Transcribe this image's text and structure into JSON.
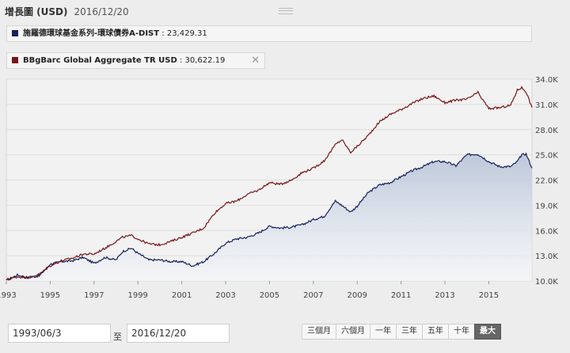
{
  "header": {
    "title": "增長圖 (USD)",
    "date": "2016/12/20"
  },
  "legend": [
    {
      "name": "施羅德環球基金系列-環球債券A-DIST",
      "value": "23,429.31",
      "color": "#16215e"
    },
    {
      "name": "BBgBarc Global Aggregate TR USD",
      "value": "30,622.19",
      "color": "#7a1616",
      "close": "✕"
    }
  ],
  "controls": {
    "start_date": "1993/06/3",
    "separator": "至",
    "end_date": "2016/12/20",
    "ranges": [
      "三個月",
      "六個月",
      "一年",
      "三年",
      "五年",
      "十年",
      "最大"
    ],
    "active_range": "最大"
  },
  "chart_data": {
    "type": "area",
    "title": "增長圖 (USD)",
    "x_ticks": [
      "1993",
      "1995",
      "1997",
      "1999",
      "2001",
      "2003",
      "2005",
      "2007",
      "2009",
      "2011",
      "2013",
      "2015"
    ],
    "x_range": [
      1993.0,
      2016.97
    ],
    "y_ticks": [
      "10.0K",
      "13.0K",
      "16.0K",
      "19.0K",
      "22.0K",
      "25.0K",
      "28.0K",
      "31.0K",
      "34.0K"
    ],
    "ylim": [
      10000,
      34000
    ],
    "series": [
      {
        "name": "施羅德環球基金系列-環球債券A-DIST",
        "color": "#16215e",
        "fill": true,
        "x": [
          1993.0,
          1993.5,
          1994.0,
          1994.5,
          1995.0,
          1995.5,
          1996.0,
          1996.5,
          1997.0,
          1997.5,
          1998.0,
          1998.3,
          1998.7,
          1999.0,
          1999.5,
          2000.0,
          2000.5,
          2001.0,
          2001.5,
          2002.0,
          2002.5,
          2003.0,
          2003.5,
          2004.0,
          2004.5,
          2005.0,
          2005.5,
          2006.0,
          2006.5,
          2007.0,
          2007.5,
          2008.0,
          2008.3,
          2008.7,
          2009.0,
          2009.5,
          2010.0,
          2010.5,
          2011.0,
          2011.5,
          2012.0,
          2012.5,
          2013.0,
          2013.5,
          2014.0,
          2014.5,
          2015.0,
          2015.5,
          2016.0,
          2016.3,
          2016.5,
          2016.7,
          2016.97
        ],
        "values": [
          10100,
          10700,
          10400,
          10600,
          12000,
          12300,
          12400,
          12800,
          12100,
          12800,
          12500,
          13500,
          13900,
          13300,
          12500,
          12500,
          12300,
          12300,
          11800,
          12300,
          13300,
          14500,
          15000,
          15200,
          15700,
          16500,
          16300,
          16400,
          16700,
          17300,
          17700,
          19500,
          19000,
          18200,
          18900,
          20500,
          21400,
          21700,
          22400,
          23100,
          23600,
          24200,
          24200,
          23700,
          25000,
          25100,
          24200,
          23600,
          23600,
          24200,
          25000,
          25100,
          23430
        ]
      },
      {
        "name": "BBgBarc Global Aggregate TR USD",
        "color": "#7a1616",
        "fill": false,
        "x": [
          1993.0,
          1993.5,
          1994.0,
          1994.5,
          1995.0,
          1995.5,
          1996.0,
          1996.5,
          1997.0,
          1997.5,
          1998.0,
          1998.3,
          1998.7,
          1999.0,
          1999.5,
          2000.0,
          2000.5,
          2001.0,
          2001.5,
          2002.0,
          2002.5,
          2003.0,
          2003.5,
          2004.0,
          2004.5,
          2005.0,
          2005.5,
          2006.0,
          2006.5,
          2007.0,
          2007.5,
          2008.0,
          2008.3,
          2008.7,
          2009.0,
          2009.5,
          2010.0,
          2010.5,
          2011.0,
          2011.5,
          2012.0,
          2012.5,
          2013.0,
          2013.5,
          2014.0,
          2014.5,
          2015.0,
          2015.5,
          2016.0,
          2016.3,
          2016.5,
          2016.7,
          2016.97
        ],
        "values": [
          10100,
          10500,
          10400,
          10800,
          11800,
          12400,
          12700,
          13200,
          13200,
          13900,
          14700,
          15200,
          15400,
          15000,
          14400,
          14300,
          14700,
          15200,
          15700,
          16300,
          18100,
          19200,
          19500,
          20300,
          20800,
          21700,
          21500,
          22000,
          22900,
          23400,
          24300,
          26200,
          26800,
          25300,
          26000,
          27300,
          28900,
          29800,
          30400,
          31100,
          31700,
          32000,
          31200,
          31500,
          31600,
          32400,
          30500,
          30600,
          30900,
          32700,
          33000,
          32500,
          30622
        ]
      }
    ]
  }
}
